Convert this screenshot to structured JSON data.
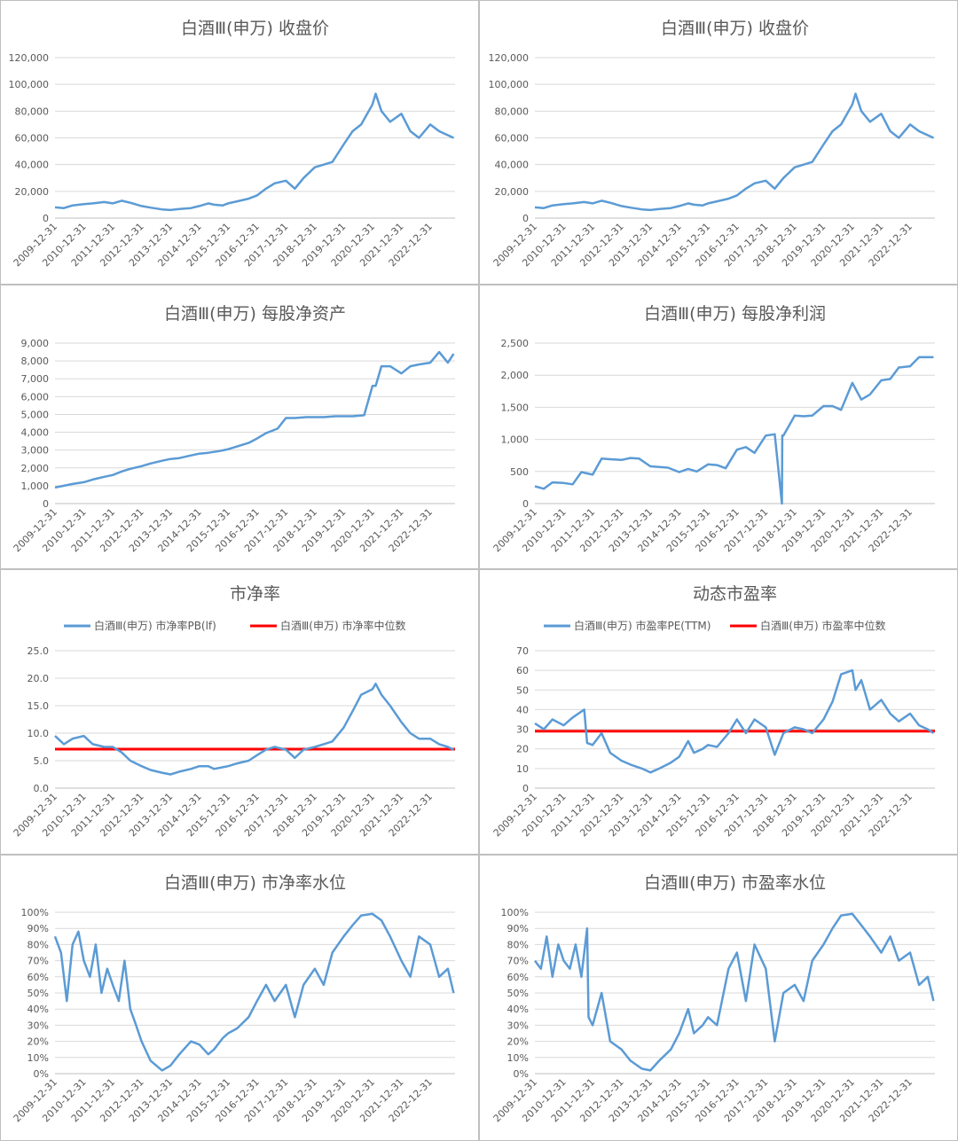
{
  "colors": {
    "series": "#5b9bd5",
    "median": "#ff0000",
    "grid": "#d9d9d9",
    "text": "#595959"
  },
  "x_categories": [
    "2009-12-31",
    "2010-12-31",
    "2011-12-31",
    "2012-12-31",
    "2013-12-31",
    "2014-12-31",
    "2015-12-31",
    "2016-12-31",
    "2017-12-31",
    "2018-12-31",
    "2019-12-31",
    "2020-12-31",
    "2021-12-31",
    "2022-12-31"
  ],
  "chart_data": [
    {
      "id": "close_left",
      "type": "line",
      "title": "白酒Ⅲ(申万) 收盘价",
      "ylim": [
        0,
        120000
      ],
      "yticks": [
        "0",
        "20,000",
        "40,000",
        "60,000",
        "80,000",
        "100,000",
        "120,000"
      ],
      "series": [
        {
          "name": "收盘价",
          "x": [
            2009.99,
            2010.3,
            2010.6,
            2010.99,
            2011.3,
            2011.7,
            2011.99,
            2012.3,
            2012.6,
            2012.99,
            2013.3,
            2013.7,
            2013.99,
            2014.3,
            2014.7,
            2014.99,
            2015.3,
            2015.5,
            2015.8,
            2015.99,
            2016.3,
            2016.7,
            2016.99,
            2017.3,
            2017.6,
            2017.99,
            2018.3,
            2018.6,
            2018.99,
            2019.3,
            2019.6,
            2019.99,
            2020.3,
            2020.6,
            2020.99,
            2021.1,
            2021.3,
            2021.6,
            2021.99,
            2022.3,
            2022.6,
            2022.99,
            2023.3,
            2023.6,
            2023.8
          ],
          "values": [
            8000,
            7500,
            9500,
            10500,
            11000,
            12000,
            11000,
            13000,
            11500,
            9000,
            7800,
            6500,
            6000,
            6800,
            7500,
            9000,
            11000,
            10000,
            9500,
            11000,
            12500,
            14500,
            17000,
            22000,
            26000,
            28000,
            22000,
            30000,
            38000,
            40000,
            42000,
            55000,
            65000,
            70000,
            85000,
            93000,
            80000,
            72000,
            78000,
            65000,
            60000,
            70000,
            65000,
            62000,
            60000
          ]
        }
      ]
    },
    {
      "id": "close_right",
      "type": "line",
      "title": "白酒Ⅲ(申万) 收盘价",
      "ylim": [
        0,
        120000
      ],
      "yticks": [
        "0",
        "20,000",
        "40,000",
        "60,000",
        "80,000",
        "100,000",
        "120,000"
      ],
      "series": [
        {
          "name": "收盘价",
          "x": [
            2009.99,
            2010.3,
            2010.6,
            2010.99,
            2011.3,
            2011.7,
            2011.99,
            2012.3,
            2012.6,
            2012.99,
            2013.3,
            2013.7,
            2013.99,
            2014.3,
            2014.7,
            2014.99,
            2015.3,
            2015.5,
            2015.8,
            2015.99,
            2016.3,
            2016.7,
            2016.99,
            2017.3,
            2017.6,
            2017.99,
            2018.3,
            2018.6,
            2018.99,
            2019.3,
            2019.6,
            2019.99,
            2020.3,
            2020.6,
            2020.99,
            2021.1,
            2021.3,
            2021.6,
            2021.99,
            2022.3,
            2022.6,
            2022.99,
            2023.3,
            2023.6,
            2023.8
          ],
          "values": [
            8000,
            7500,
            9500,
            10500,
            11000,
            12000,
            11000,
            13000,
            11500,
            9000,
            7800,
            6500,
            6000,
            6800,
            7500,
            9000,
            11000,
            10000,
            9500,
            11000,
            12500,
            14500,
            17000,
            22000,
            26000,
            28000,
            22000,
            30000,
            38000,
            40000,
            42000,
            55000,
            65000,
            70000,
            85000,
            93000,
            80000,
            72000,
            78000,
            65000,
            60000,
            70000,
            65000,
            62000,
            60000
          ]
        }
      ]
    },
    {
      "id": "bvps",
      "type": "line",
      "title": "白酒Ⅲ(申万) 每股净资产",
      "ylim": [
        0,
        9000
      ],
      "yticks": [
        "0",
        "1,000",
        "2,000",
        "3,000",
        "4,000",
        "5,000",
        "6,000",
        "7,000",
        "8,000",
        "9,000"
      ],
      "series": [
        {
          "name": "每股净资产",
          "x": [
            2009.99,
            2010.3,
            2010.6,
            2010.99,
            2011.3,
            2011.7,
            2011.99,
            2012.3,
            2012.6,
            2012.99,
            2013.3,
            2013.7,
            2013.99,
            2014.3,
            2014.7,
            2014.99,
            2015.3,
            2015.7,
            2015.99,
            2016.3,
            2016.7,
            2016.99,
            2017.3,
            2017.7,
            2017.99,
            2018.3,
            2018.7,
            2018.99,
            2019.3,
            2019.7,
            2019.99,
            2020.3,
            2020.7,
            2020.99,
            2021.1,
            2021.3,
            2021.6,
            2021.99,
            2022.3,
            2022.6,
            2022.99,
            2023.3,
            2023.6,
            2023.8
          ],
          "values": [
            900,
            1000,
            1100,
            1200,
            1350,
            1500,
            1600,
            1800,
            1950,
            2100,
            2250,
            2400,
            2500,
            2550,
            2700,
            2800,
            2850,
            2950,
            3050,
            3200,
            3400,
            3650,
            3950,
            4200,
            4800,
            4800,
            4850,
            4850,
            4850,
            4900,
            4900,
            4900,
            4950,
            6600,
            6600,
            7700,
            7700,
            7300,
            7700,
            7800,
            7900,
            8500,
            7900,
            8400
          ]
        }
      ]
    },
    {
      "id": "eps",
      "type": "line",
      "title": "白酒Ⅲ(申万) 每股净利润",
      "ylim": [
        0,
        2500
      ],
      "yticks": [
        "0",
        "500",
        "1,000",
        "1,500",
        "2,000",
        "2,500"
      ],
      "series": [
        {
          "name": "每股净利润",
          "x": [
            2009.99,
            2010.3,
            2010.6,
            2010.99,
            2011.3,
            2011.6,
            2011.99,
            2012.3,
            2012.6,
            2012.99,
            2013.3,
            2013.6,
            2013.99,
            2014.3,
            2014.6,
            2014.99,
            2015.3,
            2015.6,
            2015.99,
            2016.3,
            2016.6,
            2016.99,
            2017.3,
            2017.6,
            2017.99,
            2018.3,
            2018.55,
            2018.56,
            2018.6,
            2018.99,
            2019.3,
            2019.6,
            2019.99,
            2020.3,
            2020.6,
            2020.99,
            2021.3,
            2021.6,
            2021.99,
            2022.3,
            2022.6,
            2022.99,
            2023.3,
            2023.6,
            2023.8
          ],
          "values": [
            270,
            230,
            330,
            320,
            300,
            490,
            450,
            700,
            690,
            680,
            710,
            700,
            580,
            570,
            560,
            490,
            540,
            500,
            610,
            600,
            550,
            840,
            880,
            790,
            1060,
            1080,
            0,
            1060,
            1060,
            1370,
            1360,
            1370,
            1520,
            1520,
            1460,
            1880,
            1620,
            1700,
            1920,
            1940,
            2120,
            2140,
            2280,
            2280,
            2280
          ]
        }
      ]
    },
    {
      "id": "pb",
      "type": "line",
      "title": "市净率",
      "ylim": [
        0,
        25
      ],
      "yticks": [
        "0.0",
        "5.0",
        "10.0",
        "15.0",
        "20.0",
        "25.0"
      ],
      "legend": [
        "白酒Ⅲ(申万) 市净率PB(lf)",
        "白酒Ⅲ(申万) 市净率中位数"
      ],
      "median": 7.1,
      "series": [
        {
          "name": "白酒Ⅲ(申万) 市净率PB(lf)",
          "x": [
            2009.99,
            2010.3,
            2010.6,
            2010.99,
            2011.3,
            2011.7,
            2011.99,
            2012.3,
            2012.6,
            2012.99,
            2013.3,
            2013.7,
            2013.99,
            2014.3,
            2014.7,
            2014.99,
            2015.3,
            2015.5,
            2015.8,
            2015.99,
            2016.3,
            2016.7,
            2016.99,
            2017.3,
            2017.6,
            2017.99,
            2018.3,
            2018.6,
            2018.99,
            2019.3,
            2019.6,
            2019.99,
            2020.3,
            2020.6,
            2020.99,
            2021.1,
            2021.3,
            2021.6,
            2021.99,
            2022.3,
            2022.6,
            2022.99,
            2023.3,
            2023.6,
            2023.8
          ],
          "values": [
            9.5,
            8,
            9,
            9.5,
            8,
            7.5,
            7.5,
            6.5,
            5,
            4,
            3.3,
            2.8,
            2.5,
            3,
            3.5,
            4,
            4,
            3.5,
            3.8,
            4,
            4.5,
            5,
            6,
            7,
            7.5,
            7,
            5.5,
            7,
            7.5,
            8,
            8.5,
            11,
            14,
            17,
            18,
            19,
            17,
            15,
            12,
            10,
            9,
            9,
            8,
            7.5,
            7
          ]
        }
      ]
    },
    {
      "id": "pe",
      "type": "line",
      "title": "动态市盈率",
      "ylim": [
        0,
        70
      ],
      "yticks": [
        "0",
        "10",
        "20",
        "30",
        "40",
        "50",
        "60",
        "70"
      ],
      "legend": [
        "白酒Ⅲ(申万) 市盈率PE(TTM)",
        "白酒Ⅲ(申万) 市盈率中位数"
      ],
      "median": 29,
      "series": [
        {
          "name": "白酒Ⅲ(申万) 市盈率PE(TTM)",
          "x": [
            2009.99,
            2010.3,
            2010.6,
            2010.99,
            2011.3,
            2011.7,
            2011.8,
            2011.99,
            2012.3,
            2012.6,
            2012.99,
            2013.3,
            2013.7,
            2013.99,
            2014.3,
            2014.7,
            2014.99,
            2015.3,
            2015.5,
            2015.8,
            2015.99,
            2016.3,
            2016.7,
            2016.99,
            2017.3,
            2017.6,
            2017.99,
            2018.3,
            2018.6,
            2018.99,
            2019.3,
            2019.6,
            2019.99,
            2020.3,
            2020.6,
            2020.99,
            2021.1,
            2021.3,
            2021.6,
            2021.99,
            2022.3,
            2022.6,
            2022.99,
            2023.3,
            2023.6,
            2023.8
          ],
          "values": [
            33,
            30,
            35,
            32,
            36,
            40,
            23,
            22,
            28,
            18,
            14,
            12,
            10,
            8,
            10,
            13,
            16,
            24,
            18,
            20,
            22,
            21,
            28,
            35,
            28,
            35,
            31,
            17,
            28,
            31,
            30,
            28,
            35,
            44,
            58,
            60,
            50,
            55,
            40,
            45,
            38,
            34,
            38,
            32,
            30,
            28
          ]
        }
      ]
    },
    {
      "id": "pb_pct",
      "type": "line",
      "title": "白酒Ⅲ(申万) 市净率水位",
      "ylim": [
        0,
        1
      ],
      "yticks": [
        "0%",
        "10%",
        "20%",
        "30%",
        "40%",
        "50%",
        "60%",
        "70%",
        "80%",
        "90%",
        "100%"
      ],
      "series": [
        {
          "name": "市净率水位",
          "x": [
            2009.99,
            2010.2,
            2010.4,
            2010.6,
            2010.8,
            2010.99,
            2011.2,
            2011.4,
            2011.6,
            2011.8,
            2011.99,
            2012.2,
            2012.4,
            2012.6,
            2012.8,
            2012.99,
            2013.3,
            2013.7,
            2013.99,
            2014.3,
            2014.7,
            2014.99,
            2015.3,
            2015.5,
            2015.8,
            2015.99,
            2016.3,
            2016.7,
            2016.99,
            2017.3,
            2017.6,
            2017.99,
            2018.3,
            2018.6,
            2018.99,
            2019.3,
            2019.6,
            2019.99,
            2020.3,
            2020.6,
            2020.99,
            2021.3,
            2021.6,
            2021.99,
            2022.3,
            2022.6,
            2022.99,
            2023.3,
            2023.6,
            2023.8
          ],
          "values": [
            0.85,
            0.75,
            0.45,
            0.8,
            0.88,
            0.7,
            0.6,
            0.8,
            0.5,
            0.65,
            0.55,
            0.45,
            0.7,
            0.4,
            0.3,
            0.2,
            0.08,
            0.02,
            0.05,
            0.12,
            0.2,
            0.18,
            0.12,
            0.15,
            0.22,
            0.25,
            0.28,
            0.35,
            0.45,
            0.55,
            0.45,
            0.55,
            0.35,
            0.55,
            0.65,
            0.55,
            0.75,
            0.85,
            0.92,
            0.98,
            0.99,
            0.95,
            0.85,
            0.7,
            0.6,
            0.85,
            0.8,
            0.6,
            0.65,
            0.5
          ]
        }
      ]
    },
    {
      "id": "pe_pct",
      "type": "line",
      "title": "白酒Ⅲ(申万) 市盈率水位",
      "ylim": [
        0,
        1
      ],
      "yticks": [
        "0%",
        "10%",
        "20%",
        "30%",
        "40%",
        "50%",
        "60%",
        "70%",
        "80%",
        "90%",
        "100%"
      ],
      "series": [
        {
          "name": "市盈率水位",
          "x": [
            2009.99,
            2010.2,
            2010.4,
            2010.6,
            2010.8,
            2010.99,
            2011.2,
            2011.4,
            2011.6,
            2011.8,
            2011.85,
            2011.99,
            2012.3,
            2012.6,
            2012.99,
            2013.3,
            2013.7,
            2013.99,
            2014.3,
            2014.7,
            2014.99,
            2015.3,
            2015.5,
            2015.8,
            2015.99,
            2016.3,
            2016.7,
            2016.99,
            2017.3,
            2017.6,
            2017.99,
            2018.3,
            2018.6,
            2018.99,
            2019.3,
            2019.6,
            2019.99,
            2020.3,
            2020.6,
            2020.99,
            2021.3,
            2021.6,
            2021.99,
            2022.3,
            2022.6,
            2022.99,
            2023.3,
            2023.6,
            2023.8
          ],
          "values": [
            0.7,
            0.65,
            0.85,
            0.6,
            0.8,
            0.7,
            0.65,
            0.8,
            0.6,
            0.9,
            0.35,
            0.3,
            0.5,
            0.2,
            0.15,
            0.08,
            0.03,
            0.02,
            0.08,
            0.15,
            0.25,
            0.4,
            0.25,
            0.3,
            0.35,
            0.3,
            0.65,
            0.75,
            0.45,
            0.8,
            0.65,
            0.2,
            0.5,
            0.55,
            0.45,
            0.7,
            0.8,
            0.9,
            0.98,
            0.99,
            0.92,
            0.85,
            0.75,
            0.85,
            0.7,
            0.75,
            0.55,
            0.6,
            0.45
          ]
        }
      ]
    }
  ]
}
